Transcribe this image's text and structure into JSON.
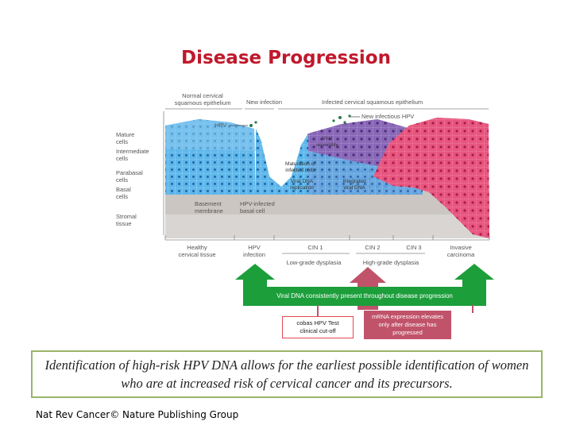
{
  "title": "Disease Progression",
  "figure": {
    "top_labels": {
      "normal": [
        "Normal cervical",
        "squamous epithelium"
      ],
      "new_infection": "New infection",
      "infected": "Infected cervical squamous epithelium"
    },
    "left_labels": {
      "mature": [
        "Mature",
        "cells"
      ],
      "intermediate": [
        "Intermediate",
        "cells"
      ],
      "parabasal": [
        "Parabasal",
        "cells"
      ],
      "basal": [
        "Basal",
        "cells"
      ],
      "stromal": [
        "Stromal",
        "tissue"
      ]
    },
    "inner_labels": {
      "hpv": "HPV",
      "new_hpv": "New infectious HPV",
      "viral_assembly": [
        "Viral",
        "assembly"
      ],
      "maturation": [
        "Maturation of",
        "infected cells"
      ],
      "viral_dna_replication": [
        "Viral DNA",
        "replication"
      ],
      "integrated_viral_dna": [
        "Integrated",
        "viral DNA"
      ],
      "basement": [
        "Basement",
        "membrane"
      ],
      "hpv_basal": [
        "HPV-infected",
        "basal cell"
      ]
    },
    "stages": {
      "healthy": [
        "Healthy",
        "cervical tissue"
      ],
      "hpv_infection": [
        "HPV",
        "infection"
      ],
      "cin1": "CIN 1",
      "cin2": "CIN 2",
      "cin3": "CIN 3",
      "invasive": [
        "Invasive",
        "carcinoma"
      ],
      "low_grade": "Low-grade dysplasia",
      "high_grade": "High-grade dysplasia"
    }
  },
  "banner": "Viral DNA consistently present throughout disease progression",
  "cobas_box": [
    "cobas HPV Test",
    "clinical cut-off"
  ],
  "mrna_box": [
    "mRNA expression elevates",
    "only after disease has",
    "progressed"
  ],
  "caption": "Identification of high-risk HPV DNA allows for the earliest possible identification of women who are at increased risk of cervical cancer and its precursors.",
  "source": "Nat Rev Cancer© Nature Publishing Group",
  "colors": {
    "title": "#c0182c",
    "normal_tissue": "#4aa8e0",
    "infected_tissue": "#7d5aa8",
    "cancer_tissue": "#e0507a",
    "stroma": "#c9c4c0",
    "green_arrow": "#1c9e3b",
    "red_arrow": "#c0536a",
    "caption_border": "#9bb36a"
  }
}
